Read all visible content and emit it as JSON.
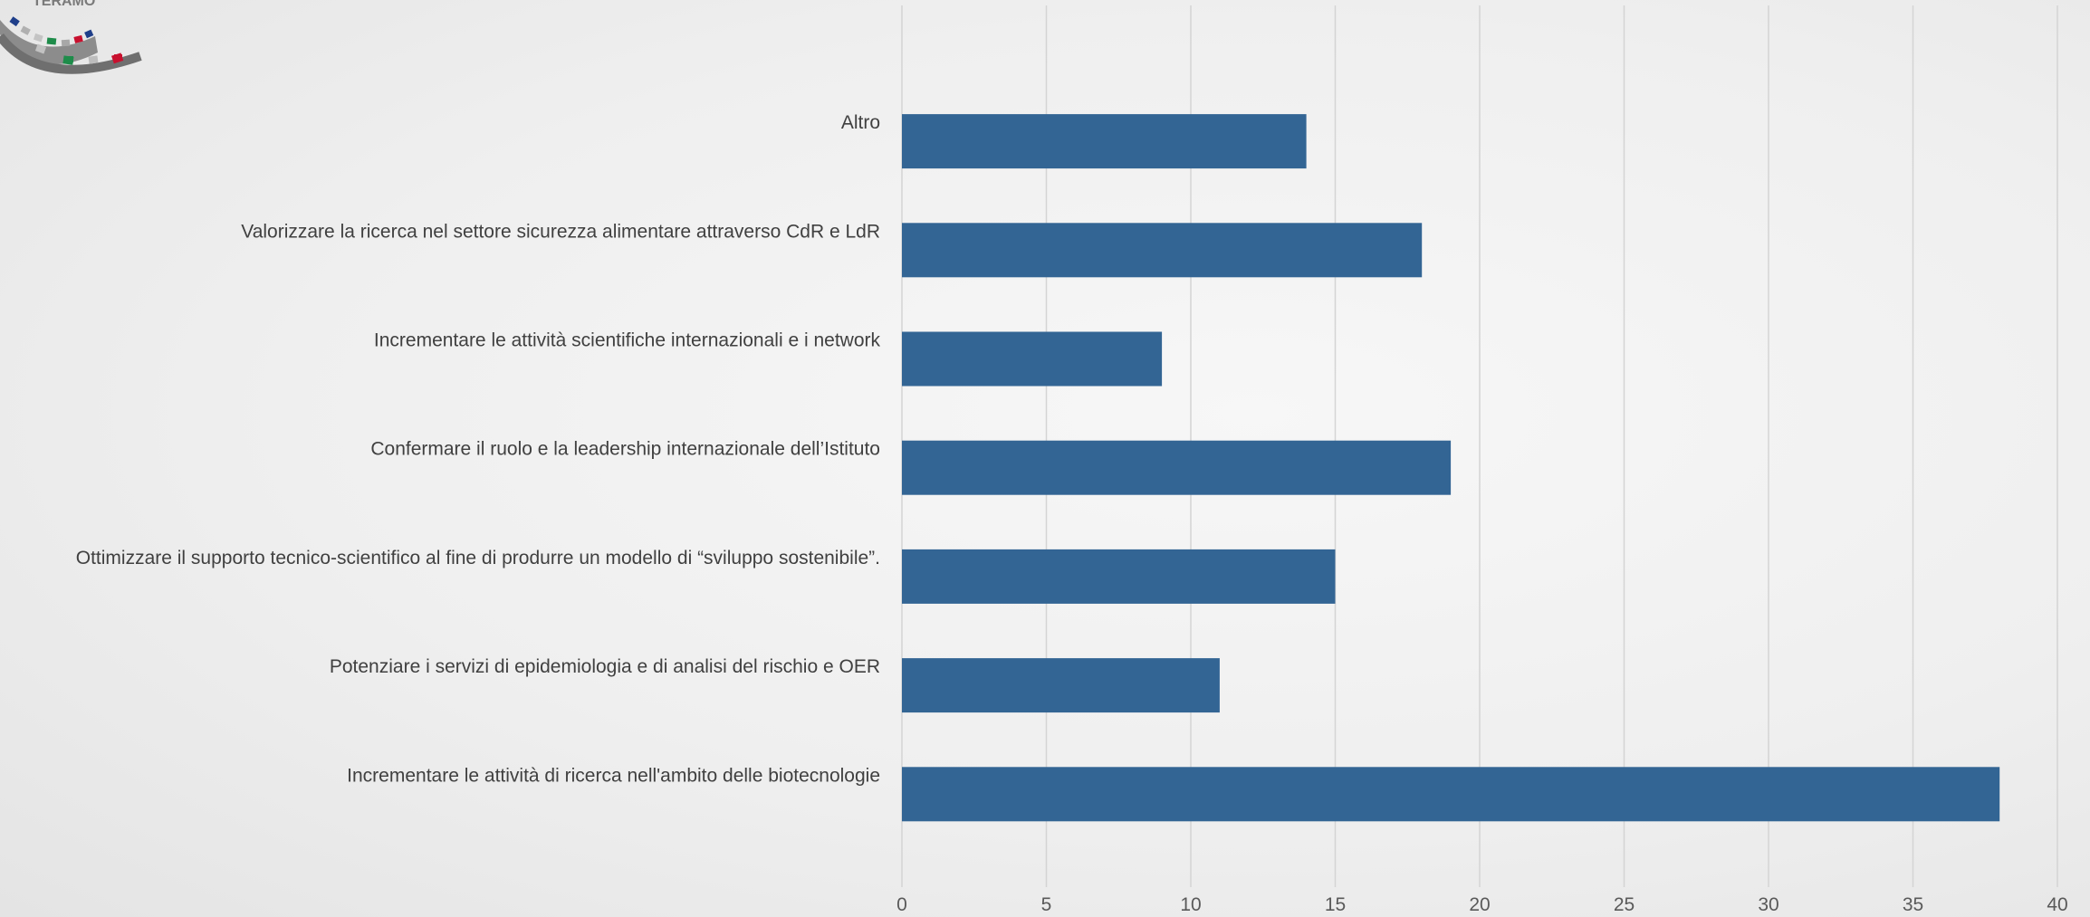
{
  "logo": {
    "text": "TERAMO"
  },
  "chart_data": {
    "type": "bar",
    "orientation": "horizontal",
    "categories": [
      "Altro",
      "Valorizzare la ricerca nel settore sicurezza alimentare attraverso CdR e LdR",
      "Incrementare le attività scientifiche internazionali e i network",
      "Confermare il ruolo e la leadership internazionale dell’Istituto",
      "Ottimizzare il supporto tecnico-scientifico al fine di produrre un modello di “sviluppo sostenibile”.",
      "Potenziare i servizi di epidemiologia e di analisi del rischio e OER",
      "Incrementare le attività di ricerca nell'ambito delle biotecnologie"
    ],
    "values": [
      14,
      18,
      9,
      19,
      15,
      11,
      38
    ],
    "title": "",
    "xlabel": "",
    "ylabel": "",
    "xlim": [
      0,
      40
    ],
    "x_ticks": [
      "0",
      "5",
      "10",
      "15",
      "20",
      "25",
      "30",
      "35",
      "40"
    ],
    "grid": "vertical",
    "bar_color": "#336594",
    "legend": "none"
  }
}
